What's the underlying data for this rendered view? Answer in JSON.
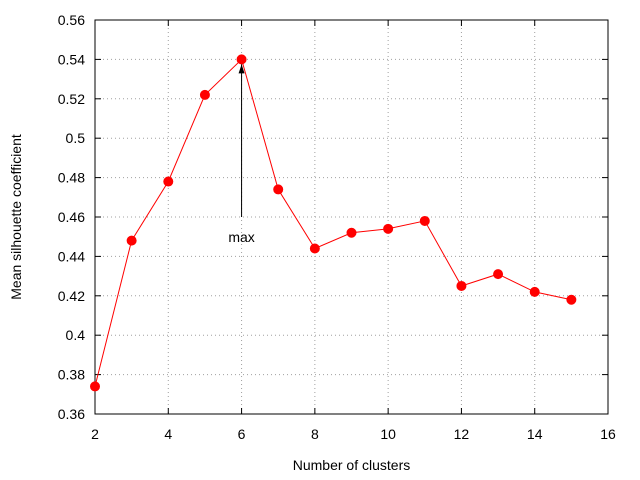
{
  "chart_data": {
    "type": "line",
    "title": "",
    "xlabel": "Number of clusters",
    "ylabel": "Mean silhouette coefficient",
    "xlim": [
      2,
      16
    ],
    "ylim": [
      0.36,
      0.56
    ],
    "x_ticks": [
      2,
      4,
      6,
      8,
      10,
      12,
      14,
      16
    ],
    "x_tick_labels": [
      "2",
      "4",
      "6",
      "8",
      "10",
      "12",
      "14",
      "16"
    ],
    "y_ticks": [
      0.36,
      0.38,
      0.4,
      0.42,
      0.44,
      0.46,
      0.48,
      0.5,
      0.52,
      0.54,
      0.56
    ],
    "y_tick_labels": [
      "0.36",
      "0.38",
      "0.4",
      "0.42",
      "0.44",
      "0.46",
      "0.48",
      "0.5",
      "0.52",
      "0.54",
      "0.56"
    ],
    "grid": true,
    "legend": "none",
    "series": [
      {
        "color": "#ff0000",
        "marker": "filled-circle",
        "x": [
          2,
          3,
          4,
          5,
          6,
          7,
          8,
          9,
          10,
          11,
          12,
          13,
          14,
          15
        ],
        "y": [
          0.374,
          0.448,
          0.478,
          0.522,
          0.54,
          0.474,
          0.444,
          0.452,
          0.454,
          0.458,
          0.425,
          0.431,
          0.422,
          0.418
        ]
      }
    ],
    "annotations": [
      {
        "text": "max",
        "arrow_target": {
          "x": 6,
          "y": 0.54
        },
        "arrow_tail": {
          "x": 6,
          "y": 0.46
        }
      }
    ]
  }
}
